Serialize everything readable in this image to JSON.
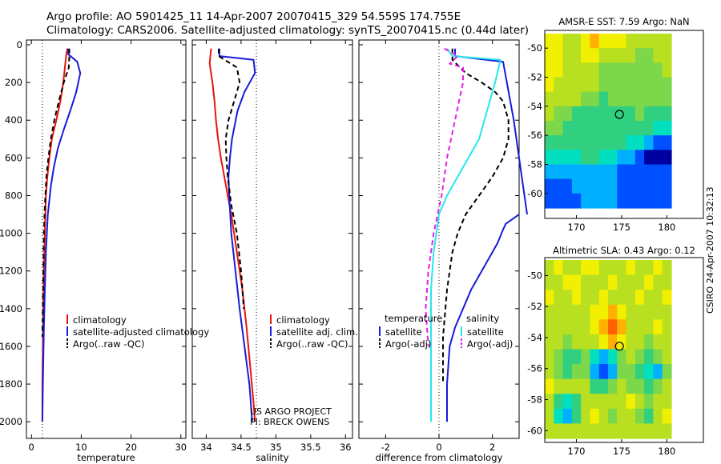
{
  "header": {
    "line1": "Argo profile: AO 5901425_11 14-Apr-2007 20070415_329 54.559S 174.755E",
    "line2": "Climatology: CARS2006. Satellite-adjusted climatology: synTS_20070415.nc (0.44d later)"
  },
  "side_label": "CSIRO 24-Apr-2007 10:32:13",
  "colors": {
    "red": "#e8140c",
    "blue": "#1a1ad8",
    "black": "#000000",
    "cyan": "#28e6ec",
    "magenta": "#e61ee6"
  },
  "chart_data": [
    {
      "type": "line",
      "xlabel": "temperature",
      "ylabel": "",
      "xlim": [
        -1,
        31
      ],
      "ylim": [
        2050,
        0
      ],
      "y_reversed": true,
      "xticks": [
        "0",
        "10",
        "20",
        "30"
      ],
      "yticks": [
        "0",
        "200",
        "400",
        "600",
        "800",
        "1000",
        "1200",
        "1400",
        "1600",
        "1800",
        "2000"
      ],
      "reference_line_x": 2.2,
      "legend": [
        "climatology",
        "satellite-adjusted climatology",
        "Argo(..raw -QC)"
      ],
      "series": [
        {
          "name": "climatology",
          "style": "solid",
          "color": "red",
          "x": [
            7.2,
            7.0,
            6.8,
            6.4,
            5.8,
            5.0,
            4.1,
            3.6,
            3.2,
            2.9,
            2.7,
            2.5,
            2.4,
            2.3,
            2.2,
            2.2
          ],
          "y": [
            20,
            50,
            100,
            200,
            300,
            400,
            500,
            600,
            700,
            800,
            1000,
            1200,
            1400,
            1600,
            1800,
            2000
          ]
        },
        {
          "name": "satellite-adjusted climatology",
          "style": "solid",
          "color": "blue",
          "x": [
            7.4,
            7.4,
            9.2,
            9.8,
            9.0,
            7.8,
            6.5,
            5.3,
            4.5,
            3.9,
            3.3,
            2.9,
            2.7,
            2.5,
            2.3,
            2.2
          ],
          "y": [
            20,
            50,
            90,
            150,
            250,
            350,
            450,
            550,
            650,
            750,
            900,
            1100,
            1300,
            1500,
            1800,
            2000
          ]
        },
        {
          "name": "Argo(..raw -QC)",
          "style": "dashed",
          "color": "black",
          "x": [
            7.6,
            7.6,
            7.5,
            6.5,
            5.5,
            4.6,
            3.9,
            3.4,
            3.0,
            2.7,
            2.5,
            2.4,
            2.3,
            2.2
          ],
          "y": [
            20,
            60,
            120,
            200,
            300,
            400,
            500,
            600,
            700,
            850,
            1000,
            1200,
            1400,
            1550
          ]
        }
      ]
    },
    {
      "type": "line",
      "xlabel": "salinity",
      "ylabel": "",
      "xlim": [
        33.8,
        36.1
      ],
      "ylim": [
        2050,
        0
      ],
      "y_reversed": true,
      "xticks": [
        "34",
        "34.5",
        "35",
        "35.5",
        "36"
      ],
      "reference_line_x": 34.72,
      "legend": [
        "climatology",
        "satellite adj. clim.",
        "Argo(..raw -QC)"
      ],
      "side_text": [
        "US ARGO PROJECT",
        "PI: BRECK OWENS"
      ],
      "series": [
        {
          "name": "climatology",
          "style": "solid",
          "color": "red",
          "x": [
            34.07,
            34.05,
            34.09,
            34.12,
            34.14,
            34.17,
            34.21,
            34.26,
            34.31,
            34.36,
            34.44,
            34.52,
            34.58,
            34.63,
            34.68,
            34.7
          ],
          "y": [
            20,
            100,
            200,
            300,
            400,
            500,
            600,
            700,
            800,
            900,
            1100,
            1300,
            1500,
            1700,
            1900,
            2000
          ]
        },
        {
          "name": "satellite adj. clim.",
          "style": "solid",
          "color": "blue",
          "x": [
            34.19,
            34.19,
            34.68,
            34.7,
            34.55,
            34.45,
            34.37,
            34.34,
            34.32,
            34.33,
            34.36,
            34.42,
            34.48,
            34.55,
            34.62,
            34.66
          ],
          "y": [
            20,
            60,
            80,
            150,
            250,
            350,
            500,
            600,
            700,
            800,
            1000,
            1200,
            1400,
            1600,
            1800,
            2000
          ]
        },
        {
          "name": "Argo(..raw -QC)",
          "style": "dashed",
          "color": "black",
          "x": [
            34.18,
            34.18,
            34.44,
            34.48,
            34.4,
            34.32,
            34.28,
            34.29,
            34.31,
            34.36,
            34.44,
            34.5,
            34.54
          ],
          "y": [
            20,
            60,
            120,
            200,
            300,
            400,
            500,
            600,
            700,
            850,
            1000,
            1200,
            1400
          ]
        }
      ]
    },
    {
      "type": "line",
      "xlabel": "difference from climatology",
      "ylabel": "",
      "xlim": [
        -3.0,
        3.0
      ],
      "ylim": [
        2050,
        0
      ],
      "y_reversed": true,
      "xticks": [
        "-2",
        "0",
        "2"
      ],
      "reference_line_x": 0,
      "legend": [
        "temperature",
        "satellite",
        "Argo(-adj)",
        "salinity",
        "satellite",
        "Argo(-adj)"
      ],
      "series": [
        {
          "name": "temperature satellite",
          "style": "solid",
          "color": "blue",
          "x": [
            0.6,
            0.6,
            2.4,
            2.8,
            3.1,
            3.3
          ],
          "y": [
            20,
            60,
            90,
            400,
            700,
            900
          ]
        },
        {
          "name": "temperature satellite",
          "style": "solid",
          "color": "blue",
          "x": [
            3.0,
            2.5,
            2.4,
            2.2,
            2.0,
            1.6,
            1.2,
            0.9,
            0.6,
            0.4,
            0.3,
            0.3
          ],
          "y": [
            900,
            950,
            980,
            1050,
            1100,
            1200,
            1300,
            1400,
            1500,
            1600,
            1800,
            2000
          ]
        },
        {
          "name": "Argo(-adj) temperature",
          "style": "dashed",
          "color": "black",
          "x": [
            0.5,
            0.5,
            1.0,
            1.6,
            2.1,
            2.4,
            2.6,
            2.6,
            2.4,
            2.0,
            1.5,
            1.0,
            0.7,
            0.5,
            0.3,
            0.15,
            0.15
          ],
          "y": [
            20,
            80,
            150,
            200,
            250,
            300,
            400,
            500,
            600,
            700,
            800,
            900,
            1000,
            1100,
            1300,
            1550,
            1800
          ]
        },
        {
          "name": "salinity satellite",
          "style": "solid",
          "color": "cyan",
          "x": [
            0.3,
            0.5,
            2.3,
            2.1,
            1.8,
            1.5,
            1.1,
            0.7,
            0.3,
            0.0,
            -0.2,
            -0.3,
            -0.3,
            -0.3
          ],
          "y": [
            20,
            60,
            80,
            200,
            350,
            500,
            600,
            700,
            800,
            900,
            1100,
            1300,
            1600,
            2000
          ]
        },
        {
          "name": "Argo(-adj) salinity",
          "style": "dashed",
          "color": "magenta",
          "x": [
            0.2,
            0.7,
            0.4,
            0.9,
            0.9,
            0.6,
            0.3,
            0.1,
            -0.2,
            -0.4,
            -0.5,
            -0.4
          ],
          "y": [
            20,
            60,
            100,
            120,
            200,
            400,
            600,
            800,
            1000,
            1200,
            1400,
            1600
          ]
        }
      ]
    },
    {
      "type": "heatmap",
      "title": "AMSR-E SST: 7.59 Argo: NaN",
      "xlim": [
        166,
        182
      ],
      "ylim": [
        -61,
        -49
      ],
      "xticks": [
        "170",
        "175",
        "180"
      ],
      "yticks": [
        "-50",
        "-52",
        "-54",
        "-56",
        "-58",
        "-60"
      ],
      "marker": {
        "lon": 174.755,
        "lat": -54.559
      },
      "colormap": [
        "#0000a0",
        "#0050ff",
        "#00b0ff",
        "#00e0c0",
        "#30d080",
        "#7cd84a",
        "#b8e020",
        "#f0f000",
        "#ffb000",
        "#ff6000"
      ],
      "grid": [
        [
          7,
          7,
          6,
          6,
          7,
          8,
          7,
          7,
          7,
          6,
          6,
          6,
          6,
          6
        ],
        [
          7,
          7,
          6,
          6,
          7,
          7,
          6,
          6,
          6,
          6,
          5,
          5,
          6,
          6
        ],
        [
          7,
          7,
          6,
          6,
          6,
          6,
          5,
          5,
          5,
          5,
          5,
          5,
          5,
          6
        ],
        [
          7,
          6,
          6,
          6,
          6,
          6,
          5,
          5,
          5,
          5,
          5,
          5,
          5,
          5
        ],
        [
          6,
          6,
          6,
          6,
          5,
          5,
          4,
          5,
          5,
          5,
          5,
          5,
          5,
          5
        ],
        [
          6,
          5,
          5,
          4,
          4,
          4,
          4,
          4,
          4,
          4,
          5,
          4,
          4,
          4
        ],
        [
          5,
          5,
          4,
          4,
          4,
          4,
          4,
          4,
          4,
          4,
          4,
          4,
          3,
          3
        ],
        [
          4,
          4,
          4,
          4,
          4,
          4,
          4,
          4,
          4,
          3,
          3,
          2,
          1,
          1
        ],
        [
          3,
          3,
          3,
          3,
          4,
          4,
          3,
          3,
          2,
          2,
          1,
          0,
          0,
          0
        ],
        [
          2,
          2,
          2,
          2,
          2,
          2,
          2,
          2,
          1,
          1,
          1,
          1,
          1,
          1
        ],
        [
          1,
          1,
          1,
          2,
          2,
          2,
          2,
          2,
          1,
          1,
          1,
          1,
          1,
          1
        ],
        [
          1,
          1,
          1,
          1,
          2,
          2,
          2,
          2,
          1,
          1,
          1,
          1,
          1,
          1
        ]
      ]
    },
    {
      "type": "heatmap",
      "title": "Altimetric SLA: 0.43 Argo: 0.12",
      "xlim": [
        166,
        182
      ],
      "ylim": [
        -60.5,
        -49
      ],
      "xticks": [
        "170",
        "175",
        "180"
      ],
      "yticks": [
        "-50",
        "-52",
        "-54",
        "-56",
        "-58",
        "-60"
      ],
      "marker": {
        "lon": 174.755,
        "lat": -54.559
      },
      "colormap": [
        "#0000a0",
        "#0050ff",
        "#00b0ff",
        "#00e0c0",
        "#30d080",
        "#7cd84a",
        "#b8e020",
        "#f0f000",
        "#ffb000",
        "#ff6000"
      ],
      "grid": [
        [
          6,
          7,
          6,
          6,
          7,
          7,
          6,
          6,
          6,
          7,
          6,
          6,
          7,
          6
        ],
        [
          6,
          6,
          7,
          7,
          6,
          6,
          6,
          7,
          6,
          6,
          6,
          7,
          6,
          6
        ],
        [
          7,
          6,
          6,
          7,
          6,
          6,
          7,
          6,
          6,
          6,
          7,
          6,
          6,
          7
        ],
        [
          6,
          6,
          6,
          6,
          6,
          7,
          7,
          8,
          7,
          6,
          6,
          6,
          6,
          6
        ],
        [
          6,
          6,
          6,
          6,
          6,
          7,
          8,
          9,
          8,
          6,
          6,
          6,
          7,
          6
        ],
        [
          6,
          6,
          5,
          6,
          6,
          6,
          7,
          8,
          7,
          6,
          6,
          5,
          6,
          6
        ],
        [
          6,
          5,
          4,
          4,
          5,
          3,
          2,
          3,
          5,
          6,
          5,
          4,
          5,
          6
        ],
        [
          6,
          5,
          4,
          5,
          5,
          2,
          1,
          2,
          5,
          5,
          4,
          3,
          2,
          5
        ],
        [
          7,
          6,
          6,
          6,
          6,
          4,
          4,
          5,
          6,
          5,
          5,
          4,
          5,
          6
        ],
        [
          6,
          4,
          3,
          4,
          6,
          6,
          6,
          6,
          6,
          7,
          6,
          5,
          6,
          6
        ],
        [
          6,
          3,
          2,
          4,
          6,
          7,
          6,
          5,
          6,
          6,
          5,
          4,
          6,
          7
        ],
        [
          6,
          6,
          6,
          6,
          6,
          6,
          6,
          6,
          6,
          6,
          6,
          6,
          6,
          6
        ]
      ]
    }
  ]
}
